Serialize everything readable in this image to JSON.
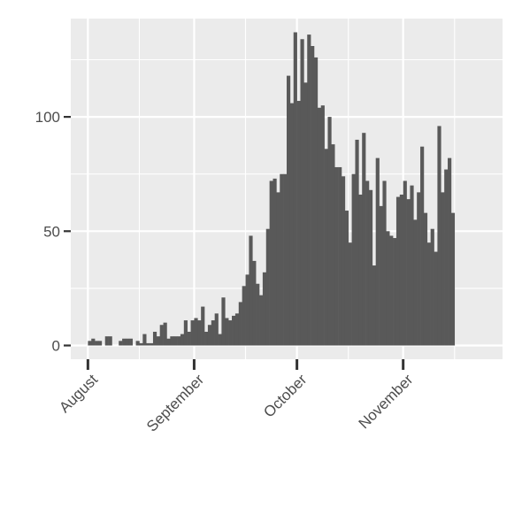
{
  "chart_data": {
    "type": "bar",
    "title": "",
    "xlabel": "",
    "ylabel": "",
    "x_range": [
      "2020-07-27",
      "2020-11-30"
    ],
    "ylim": [
      -6,
      143
    ],
    "y_ticks": [
      0,
      50,
      100
    ],
    "y_tick_labels": [
      "0",
      "50",
      "100"
    ],
    "x_ticks": [
      "2020-08-01",
      "2020-09-01",
      "2020-10-01",
      "2020-11-01"
    ],
    "x_tick_labels": [
      "August",
      "September",
      "October",
      "November"
    ],
    "x_minor_breaks": [
      "2020-08-16",
      "2020-09-16",
      "2020-10-16",
      "2020-11-16"
    ],
    "y_minor_breaks": [
      25,
      75,
      125
    ],
    "grid": true,
    "bar_color": "#595959",
    "panel_color": "#ebebeb",
    "grid_color": "#ffffff",
    "axis_text_color": "#4d4d4d",
    "start_date": "2020-08-01",
    "values": [
      2,
      3,
      2,
      2,
      0,
      4,
      4,
      0,
      0,
      2,
      3,
      3,
      3,
      0,
      2,
      1,
      5,
      1,
      1,
      6,
      4,
      9,
      10,
      3,
      4,
      4,
      4,
      5,
      11,
      6,
      11,
      12,
      11,
      17,
      6,
      9,
      11,
      14,
      5,
      21,
      12,
      11,
      13,
      14,
      19,
      26,
      31,
      48,
      37,
      27,
      22,
      32,
      51,
      72,
      73,
      67,
      75,
      75,
      118,
      106,
      137,
      107,
      134,
      115,
      136,
      131,
      126,
      104,
      105,
      86,
      100,
      88,
      78,
      78,
      74,
      59,
      45,
      75,
      90,
      66,
      93,
      72,
      68,
      35,
      82,
      61,
      72,
      50,
      48,
      47,
      65,
      66,
      72,
      64,
      70,
      55,
      67,
      87,
      58,
      45,
      51,
      41,
      96,
      67,
      77,
      82,
      58
    ]
  }
}
